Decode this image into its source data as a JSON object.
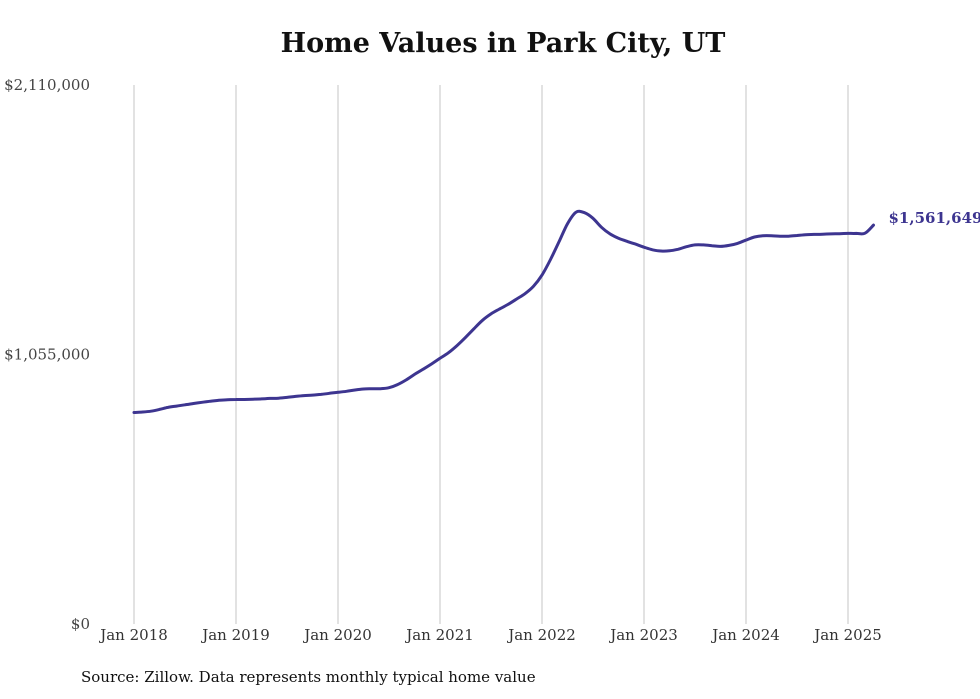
{
  "title": "Home Values in Park City, UT",
  "source_note": "Source: Zillow. Data represents monthly typical home value",
  "colors": {
    "line": "#3d3590",
    "grid": "#c4c4c4",
    "text": "#333333"
  },
  "chart_data": {
    "type": "line",
    "title": "Home Values in Park City, UT",
    "xlabel": "",
    "ylabel": "",
    "ylim": [
      0,
      2110000
    ],
    "yticks": [
      0,
      1055000,
      2110000
    ],
    "ytick_labels": [
      "$0",
      "$1,055,000",
      "$2,110,000"
    ],
    "xticks": [
      "Jan 2018",
      "Jan 2019",
      "Jan 2020",
      "Jan 2021",
      "Jan 2022",
      "Jan 2023",
      "Jan 2024",
      "Jan 2025"
    ],
    "grid": "vertical",
    "end_label": "$1,561,649",
    "series": [
      {
        "x": [
          "2018-01",
          "2018-02",
          "2018-03",
          "2018-04",
          "2018-05",
          "2018-06",
          "2018-07",
          "2018-08",
          "2018-09",
          "2018-10",
          "2018-11",
          "2018-12",
          "2019-01",
          "2019-02",
          "2019-03",
          "2019-04",
          "2019-05",
          "2019-06",
          "2019-07",
          "2019-08",
          "2019-09",
          "2019-10",
          "2019-11",
          "2019-12",
          "2020-01",
          "2020-02",
          "2020-03",
          "2020-04",
          "2020-05",
          "2020-06",
          "2020-07",
          "2020-08",
          "2020-09",
          "2020-10",
          "2020-11",
          "2020-12",
          "2021-01",
          "2021-02",
          "2021-03",
          "2021-04",
          "2021-05",
          "2021-06",
          "2021-07",
          "2021-08",
          "2021-09",
          "2021-10",
          "2021-11",
          "2021-12",
          "2022-01",
          "2022-02",
          "2022-03",
          "2022-04",
          "2022-05",
          "2022-06",
          "2022-07",
          "2022-08",
          "2022-09",
          "2022-10",
          "2022-11",
          "2022-12",
          "2023-01",
          "2023-02",
          "2023-03",
          "2023-04",
          "2023-05",
          "2023-06",
          "2023-07",
          "2023-08",
          "2023-09",
          "2023-10",
          "2023-11",
          "2023-12",
          "2024-01",
          "2024-02",
          "2024-03",
          "2024-04",
          "2024-05",
          "2024-06",
          "2024-07",
          "2024-08",
          "2024-09",
          "2024-10",
          "2024-11",
          "2024-12",
          "2025-01",
          "2025-02",
          "2025-03",
          "2025-04"
        ],
        "values": [
          828000,
          830000,
          833000,
          840000,
          848000,
          853000,
          858000,
          863000,
          868000,
          872000,
          876000,
          878000,
          879000,
          879000,
          880000,
          881000,
          883000,
          884000,
          887000,
          891000,
          894000,
          896000,
          899000,
          903000,
          907000,
          911000,
          916000,
          920000,
          921000,
          921000,
          925000,
          937000,
          955000,
          977000,
          997000,
          1018000,
          1040000,
          1062000,
          1090000,
          1122000,
          1156000,
          1189000,
          1214000,
          1233000,
          1251000,
          1272000,
          1293000,
          1322000,
          1366000,
          1427000,
          1496000,
          1567000,
          1612000,
          1610000,
          1588000,
          1553000,
          1527000,
          1510000,
          1498000,
          1487000,
          1475000,
          1465000,
          1460000,
          1461000,
          1467000,
          1477000,
          1484000,
          1484000,
          1481000,
          1478000,
          1482000,
          1490000,
          1503000,
          1515000,
          1520000,
          1520000,
          1518000,
          1518000,
          1521000,
          1524000,
          1525000,
          1526000,
          1527000,
          1528000,
          1529000,
          1529000,
          1530000,
          1561649
        ]
      }
    ]
  }
}
